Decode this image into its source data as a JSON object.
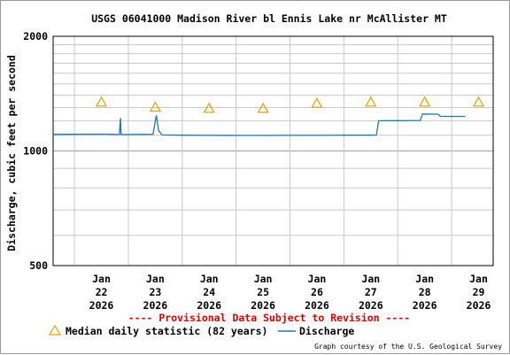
{
  "chart_data": {
    "type": "line",
    "title": "USGS 06041000 Madison River bl Ennis Lake nr McAllister MT",
    "ylabel": "Discharge, cubic feet per second",
    "y_scale": "log",
    "ylim": [
      500,
      2000
    ],
    "y_ticks": [
      {
        "value": 500,
        "label": "500"
      },
      {
        "value": 1000,
        "label": "1000"
      },
      {
        "value": 2000,
        "label": "2000"
      }
    ],
    "x_ticks": [
      {
        "date": "2026-01-22",
        "lines": [
          "Jan",
          "22",
          "2026"
        ]
      },
      {
        "date": "2026-01-23",
        "lines": [
          "Jan",
          "23",
          "2026"
        ]
      },
      {
        "date": "2026-01-24",
        "lines": [
          "Jan",
          "24",
          "2026"
        ]
      },
      {
        "date": "2026-01-25",
        "lines": [
          "Jan",
          "25",
          "2026"
        ]
      },
      {
        "date": "2026-01-26",
        "lines": [
          "Jan",
          "26",
          "2026"
        ]
      },
      {
        "date": "2026-01-27",
        "lines": [
          "Jan",
          "27",
          "2026"
        ]
      },
      {
        "date": "2026-01-28",
        "lines": [
          "Jan",
          "28",
          "2026"
        ]
      },
      {
        "date": "2026-01-29",
        "lines": [
          "Jan",
          "29",
          "2026"
        ]
      }
    ],
    "xlim": [
      "2026-01-21T14:30",
      "2026-01-29T18:30"
    ],
    "grid": true,
    "notice": "---- Provisional Data Subject to Revision ----",
    "credit": "Graph courtesy of the U.S. Geological Survey",
    "series": [
      {
        "name": "Median daily statistic (82 years)",
        "kind": "markers",
        "color": "#e0a000",
        "points": [
          {
            "x": "2026-01-22T12:00",
            "y": 1340
          },
          {
            "x": "2026-01-23T12:00",
            "y": 1300
          },
          {
            "x": "2026-01-24T12:00",
            "y": 1290
          },
          {
            "x": "2026-01-25T12:00",
            "y": 1290
          },
          {
            "x": "2026-01-26T12:00",
            "y": 1330
          },
          {
            "x": "2026-01-27T12:00",
            "y": 1340
          },
          {
            "x": "2026-01-28T12:00",
            "y": 1340
          },
          {
            "x": "2026-01-29T12:00",
            "y": 1340
          }
        ]
      },
      {
        "name": "Discharge",
        "kind": "line",
        "color": "#2277aa",
        "points": [
          {
            "x": "2026-01-21T14:30",
            "y": 1105
          },
          {
            "x": "2026-01-22T00:00",
            "y": 1106
          },
          {
            "x": "2026-01-22T12:00",
            "y": 1107
          },
          {
            "x": "2026-01-22T20:00",
            "y": 1104
          },
          {
            "x": "2026-01-22T20:30",
            "y": 1220
          },
          {
            "x": "2026-01-22T20:45",
            "y": 1104
          },
          {
            "x": "2026-01-23T06:00",
            "y": 1105
          },
          {
            "x": "2026-01-23T11:00",
            "y": 1106
          },
          {
            "x": "2026-01-23T12:30",
            "y": 1240
          },
          {
            "x": "2026-01-23T13:30",
            "y": 1130
          },
          {
            "x": "2026-01-23T15:00",
            "y": 1102
          },
          {
            "x": "2026-01-24T00:00",
            "y": 1100
          },
          {
            "x": "2026-01-24T12:00",
            "y": 1099
          },
          {
            "x": "2026-01-25T00:00",
            "y": 1098
          },
          {
            "x": "2026-01-25T12:00",
            "y": 1098
          },
          {
            "x": "2026-01-26T00:00",
            "y": 1099
          },
          {
            "x": "2026-01-26T12:00",
            "y": 1099
          },
          {
            "x": "2026-01-27T00:00",
            "y": 1100
          },
          {
            "x": "2026-01-27T12:00",
            "y": 1100
          },
          {
            "x": "2026-01-27T14:30",
            "y": 1101
          },
          {
            "x": "2026-01-27T15:30",
            "y": 1200
          },
          {
            "x": "2026-01-28T00:00",
            "y": 1201
          },
          {
            "x": "2026-01-28T10:00",
            "y": 1202
          },
          {
            "x": "2026-01-28T11:00",
            "y": 1250
          },
          {
            "x": "2026-01-28T18:00",
            "y": 1249
          },
          {
            "x": "2026-01-28T19:00",
            "y": 1232
          },
          {
            "x": "2026-01-29T06:00",
            "y": 1232
          }
        ]
      }
    ],
    "legend": {
      "placement": "bottom",
      "median_label": "Median daily statistic (82 years)",
      "discharge_label": "Discharge"
    }
  }
}
